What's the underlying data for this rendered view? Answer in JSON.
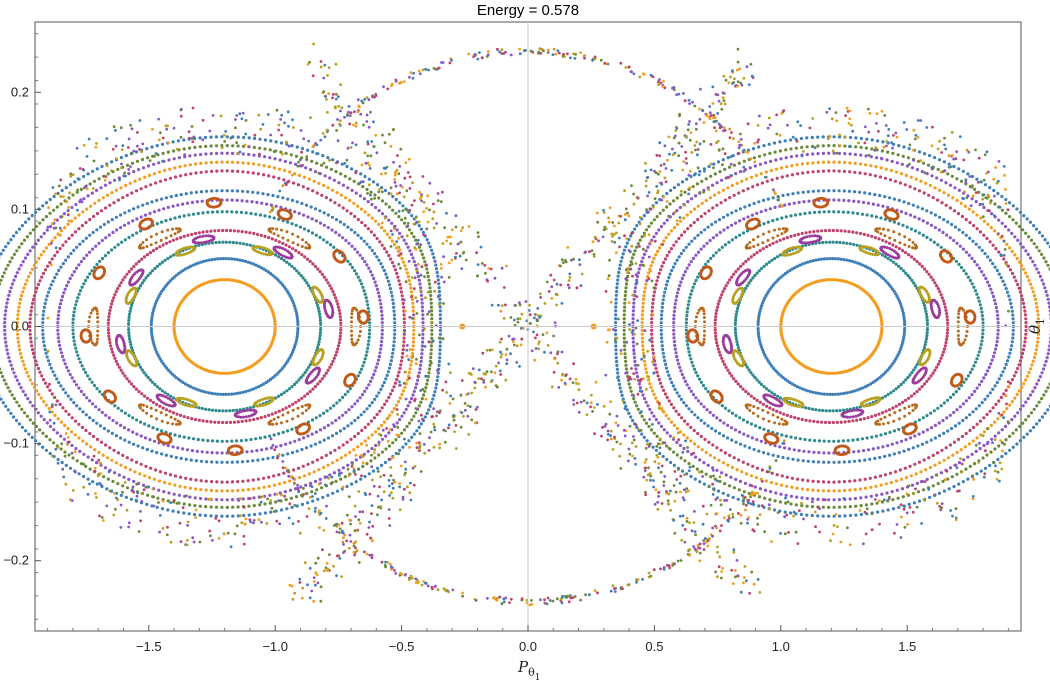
{
  "chart_data": {
    "type": "scatter",
    "title": "Energy = 0.578",
    "xlabel": {
      "main": "P",
      "sub": "θ",
      "subsub": "1"
    },
    "ylabel": {
      "main": "θ",
      "sub": "1"
    },
    "xlim": [
      -1.95,
      1.95
    ],
    "ylim": [
      -0.26,
      0.26
    ],
    "x_ticks": [
      -1.5,
      -1.0,
      -0.5,
      0.0,
      0.5,
      1.0,
      1.5
    ],
    "x_tick_labels": [
      "−1.5",
      "−1.0",
      "−0.5",
      "0.0",
      "0.5",
      "1.0",
      "1.5"
    ],
    "y_ticks": [
      -0.2,
      -0.1,
      0.0,
      0.1,
      0.2
    ],
    "y_tick_labels": [
      "−0.2",
      "−0.1",
      "0.0",
      "0.1",
      "0.2"
    ],
    "grid": false,
    "origin_axes": true,
    "legend": "none",
    "islands": {
      "centers_x": [
        -1.2,
        1.2
      ],
      "center_y": 0.0,
      "tori": [
        {
          "a": 0.2,
          "b": 0.04,
          "color": "#f39c1f"
        },
        {
          "a": 0.29,
          "b": 0.058,
          "color": "#3e7fb8"
        },
        {
          "a": 0.38,
          "b": 0.072,
          "color": "#2e8a8c"
        },
        {
          "a": 0.46,
          "b": 0.082,
          "color": "#c0416b"
        },
        {
          "a": 0.6,
          "b": 0.098,
          "color": "#2e8a8c"
        },
        {
          "a": 0.66,
          "b": 0.108,
          "color": "#8a57c5"
        },
        {
          "a": 0.72,
          "b": 0.116,
          "color": "#3e7fb8"
        },
        {
          "a": 0.77,
          "b": 0.123,
          "color": "#c0416b"
        },
        {
          "a": 0.82,
          "b": 0.13,
          "color": "#f39c1f"
        },
        {
          "a": 0.87,
          "b": 0.137,
          "color": "#8a57c5"
        },
        {
          "a": 0.92,
          "b": 0.143,
          "color": "#6a8a3a"
        },
        {
          "a": 0.97,
          "b": 0.15,
          "color": "#3e7fb8"
        }
      ],
      "island_chain_colors": [
        "#b86a1c",
        "#9c3b9e",
        "#b8a020",
        "#c05a1a"
      ],
      "chaos_colors": [
        "#f39c1f",
        "#3e7fb8",
        "#8a57c5",
        "#c0416b",
        "#6a8a3a",
        "#b8a020"
      ],
      "outer_boundary_peak": 0.235,
      "hyperbolic_points_x": [
        -0.26,
        0.26
      ]
    }
  }
}
